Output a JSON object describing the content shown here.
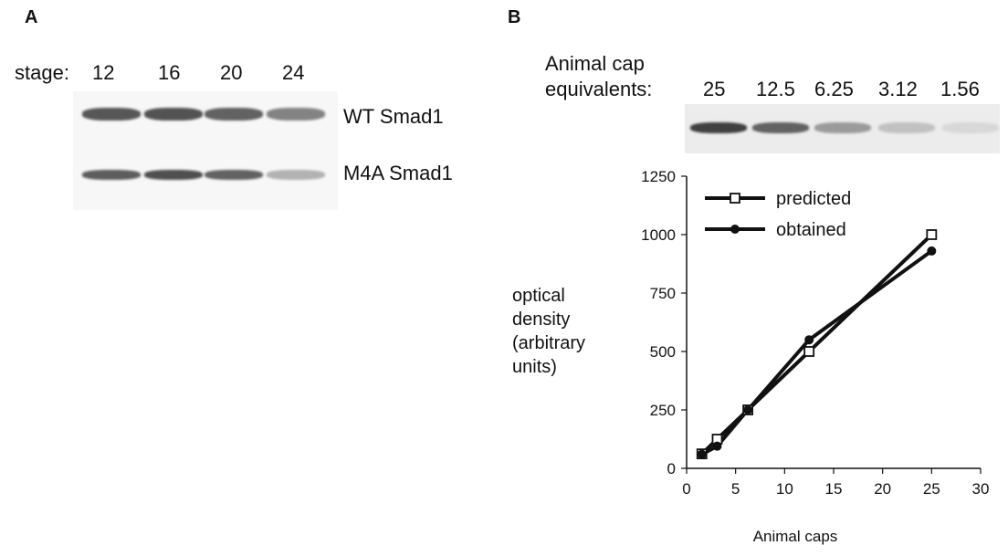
{
  "panelA": {
    "letter": "A",
    "stage_label": "stage:",
    "stages": [
      "12",
      "16",
      "20",
      "24"
    ],
    "blots": [
      {
        "label": "WT Smad1",
        "intensities": [
          0.78,
          0.8,
          0.72,
          0.55
        ]
      },
      {
        "label": "M4A Smad1",
        "intensities": [
          0.75,
          0.82,
          0.72,
          0.3
        ]
      }
    ]
  },
  "panelB": {
    "letter": "B",
    "equiv_label_line1": "Animal cap",
    "equiv_label_line2": "equivalents:",
    "equivalents": [
      "25",
      "12.5",
      "6.25",
      "3.12",
      "1.56"
    ],
    "band_intensities": [
      0.9,
      0.72,
      0.42,
      0.22,
      0.1
    ]
  },
  "chart_data": {
    "type": "line",
    "xlabel": "Animal caps",
    "ylabel_lines": [
      "optical",
      "density",
      "(arbitrary",
      "units)"
    ],
    "xlim": [
      0,
      30
    ],
    "ylim": [
      0,
      1250
    ],
    "xticks": [
      0,
      5,
      10,
      15,
      20,
      25,
      30
    ],
    "yticks": [
      0,
      250,
      500,
      750,
      1000,
      1250
    ],
    "legend_position": "top-left",
    "grid": false,
    "series": [
      {
        "name": "predicted",
        "marker": "square-open",
        "x": [
          1.56,
          3.12,
          6.25,
          12.5,
          25
        ],
        "y": [
          62,
          125,
          250,
          500,
          1000
        ]
      },
      {
        "name": "obtained",
        "marker": "circle-filled",
        "x": [
          1.56,
          3.12,
          6.25,
          12.5,
          25
        ],
        "y": [
          60,
          95,
          250,
          550,
          930
        ]
      }
    ]
  }
}
